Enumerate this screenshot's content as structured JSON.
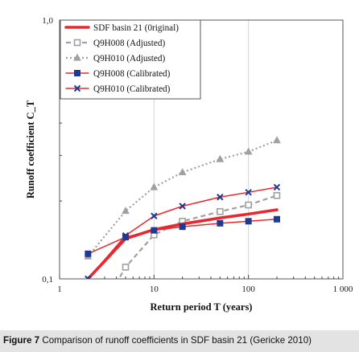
{
  "figure": {
    "label": "Figure 7",
    "caption": "Comparison of runoff coefficients in SDF basin 21 (Gericke 2010)"
  },
  "chart_data": {
    "type": "line",
    "title": "",
    "xlabel": "Return period T (years)",
    "ylabel": "Runoff coefficient C_T",
    "x_scale": "log",
    "y_scale": "log",
    "xlim": [
      1,
      1000
    ],
    "ylim": [
      0.1,
      1.0
    ],
    "x_ticks": [
      {
        "value": 1,
        "label": "1"
      },
      {
        "value": 10,
        "label": "10"
      },
      {
        "value": 100,
        "label": "100"
      },
      {
        "value": 1000,
        "label": "1 000"
      }
    ],
    "y_ticks": [
      {
        "value": 0.1,
        "label": "0,1"
      },
      {
        "value": 1.0,
        "label": "1,0"
      }
    ],
    "grid": true,
    "legend_position": "top-left",
    "series": [
      {
        "name": "SDF basin 21 (0riginal)",
        "color": "#e8282e",
        "style": "solid-thick",
        "marker": "none",
        "x": [
          2,
          5,
          10,
          20,
          50,
          100,
          200
        ],
        "y": [
          0.1,
          0.143,
          0.155,
          0.163,
          0.172,
          0.178,
          0.185
        ]
      },
      {
        "name": "Q9H008 (Adjusted)",
        "color": "#a0a0a0",
        "style": "dashed",
        "marker": "square-open",
        "x": [
          2,
          5,
          10,
          20,
          50,
          100,
          200
        ],
        "y": [
          0.062,
          0.111,
          0.148,
          0.167,
          0.182,
          0.193,
          0.21
        ]
      },
      {
        "name": "Q9H010 (Adjusted)",
        "color": "#a0a0a0",
        "style": "dotted",
        "marker": "triangle",
        "x": [
          2,
          5,
          10,
          20,
          50,
          100,
          200
        ],
        "y": [
          0.122,
          0.183,
          0.226,
          0.258,
          0.29,
          0.31,
          0.343
        ]
      },
      {
        "name": "Q9H008 (Calibrated)",
        "color": "#e8282e",
        "style": "solid",
        "marker": "square-filled",
        "x": [
          2,
          5,
          10,
          20,
          50,
          100,
          200
        ],
        "y": [
          0.125,
          0.145,
          0.154,
          0.159,
          0.164,
          0.167,
          0.17
        ]
      },
      {
        "name": "Q9H010 (Calibrated)",
        "color": "#e8282e",
        "style": "solid",
        "marker": "x",
        "x": [
          2,
          5,
          10,
          20,
          50,
          100,
          200
        ],
        "y": [
          0.1,
          0.147,
          0.175,
          0.191,
          0.207,
          0.216,
          0.226
        ]
      }
    ]
  }
}
